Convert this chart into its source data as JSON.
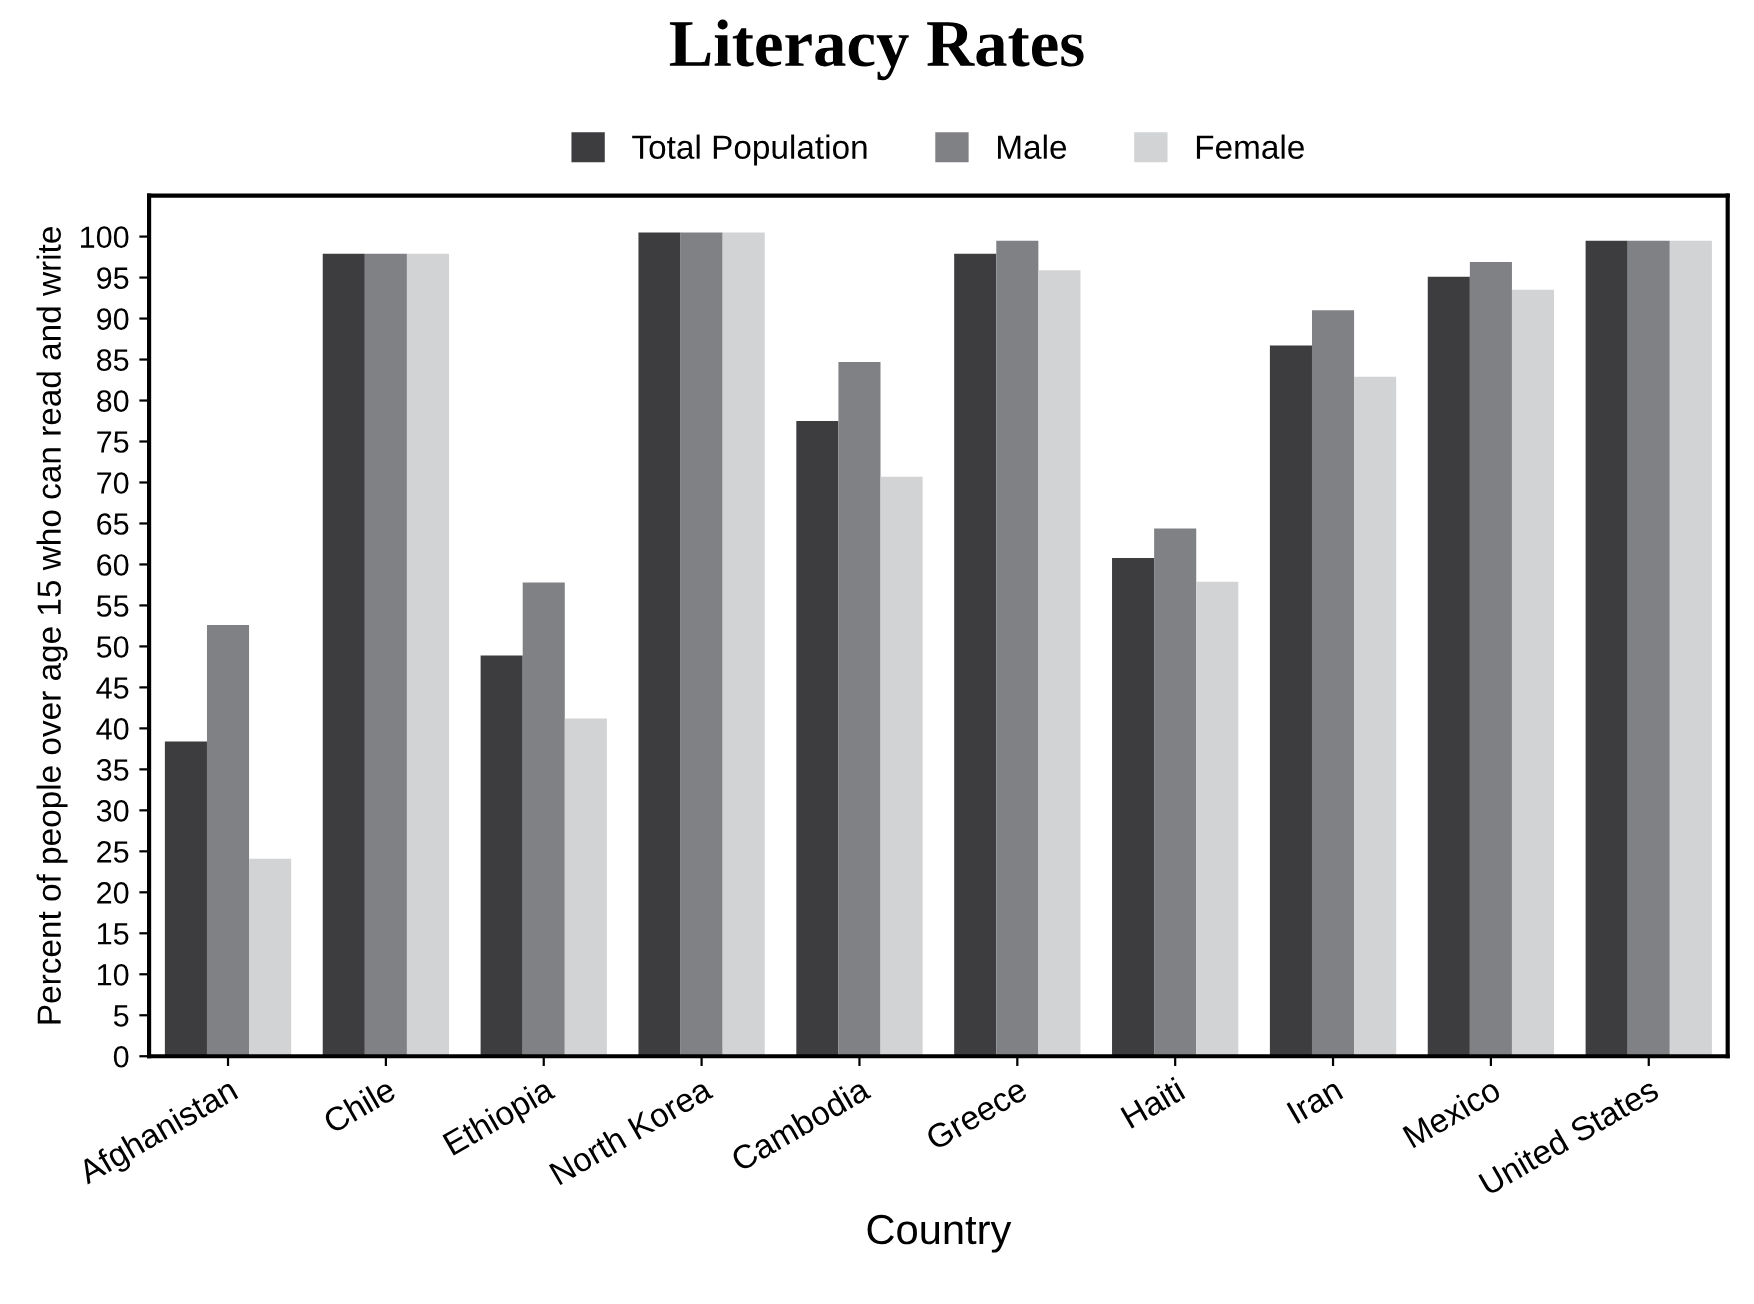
{
  "chart_data": {
    "type": "bar",
    "title": "Literacy Rates",
    "xlabel": "Country",
    "ylabel": "Percent of people over age 15 who can read and write",
    "categories": [
      "Afghanistan",
      "Chile",
      "Ethiopia",
      "North Korea",
      "Cambodia",
      "Greece",
      "Haiti",
      "Iran",
      "Mexico",
      "United States"
    ],
    "series": [
      {
        "name": "Total Population",
        "color": "#3d3d3f",
        "values": [
          38.4,
          97.9,
          48.9,
          100.5,
          77.5,
          97.9,
          60.8,
          86.7,
          95.1,
          99.5
        ]
      },
      {
        "name": "Male",
        "color": "#808184",
        "values": [
          52.6,
          97.9,
          57.8,
          100.5,
          84.7,
          99.5,
          64.4,
          91.0,
          96.9,
          99.5
        ]
      },
      {
        "name": "Female",
        "color": "#d1d3d4",
        "values": [
          24.1,
          97.9,
          41.2,
          100.5,
          70.7,
          95.9,
          57.9,
          82.9,
          93.5,
          99.5
        ]
      }
    ],
    "ylim": [
      0,
      105
    ],
    "yticks": [
      0,
      5,
      10,
      15,
      20,
      25,
      30,
      35,
      40,
      45,
      50,
      55,
      60,
      65,
      70,
      75,
      80,
      85,
      90,
      95,
      100
    ],
    "grid": false,
    "legend": "top"
  }
}
